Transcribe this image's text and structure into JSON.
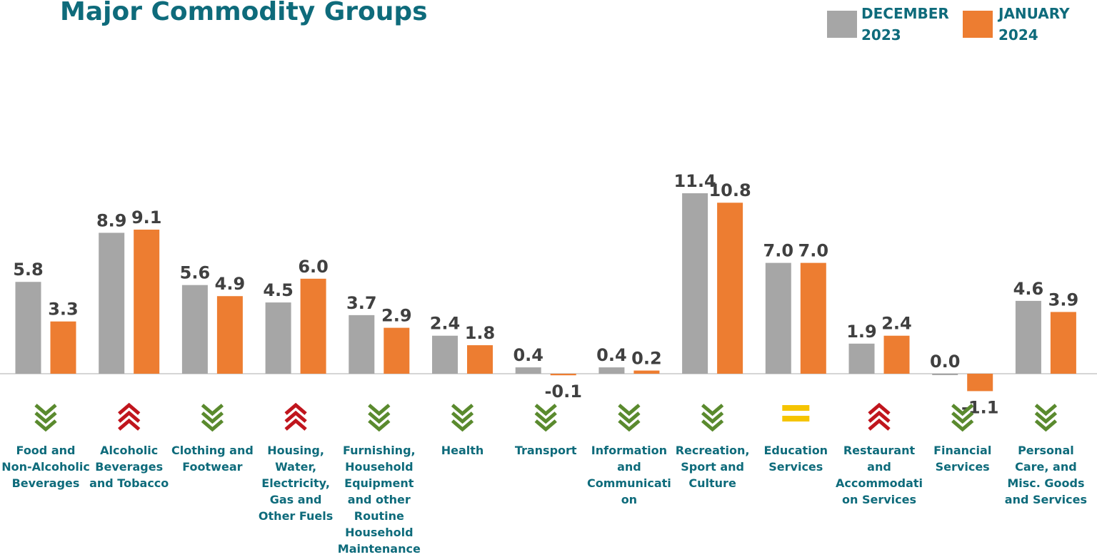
{
  "chart_data": {
    "type": "bar",
    "title": "Major Commodity Groups",
    "categories": [
      "Food and Non-Alcoholic Beverages",
      "Alcoholic Beverages and Tobacco",
      "Clothing and Footwear",
      "Housing, Water, Electricity, Gas and Other Fuels",
      "Furnishing, Household Equipment and other Routine Household Maintenance",
      "Health",
      "Transport",
      "Information and Communication",
      "Recreation, Sport and Culture",
      "Education Services",
      "Restaurant and Accommodation Services",
      "Financial Services",
      "Personal Care, and Misc. Goods and Services"
    ],
    "series": [
      {
        "name": "DECEMBER 2023",
        "color": "#a6a6a6",
        "values": [
          5.8,
          8.9,
          5.6,
          4.5,
          3.7,
          2.4,
          0.4,
          0.4,
          11.4,
          7.0,
          1.9,
          0.0,
          4.6
        ],
        "value_labels": [
          "5.8",
          "8.9",
          "5.6",
          "4.5",
          "3.7",
          "2.4",
          "0.4",
          "0.4",
          "11.4",
          "7.0",
          "1.9",
          "0.0",
          "4.6"
        ]
      },
      {
        "name": "JANUARY 2024",
        "color": "#ed7d31",
        "values": [
          3.3,
          9.1,
          4.9,
          6.0,
          2.9,
          1.8,
          -0.1,
          0.2,
          10.8,
          7.0,
          2.4,
          -1.1,
          3.9
        ],
        "value_labels": [
          "3.3",
          "9.1",
          "4.9",
          "6.0",
          "2.9",
          "1.8",
          "-0.1",
          "0.2",
          "10.8",
          "7.0",
          "2.4",
          "-1.1",
          "3.9"
        ]
      }
    ],
    "legend": "top-right"
  }
}
